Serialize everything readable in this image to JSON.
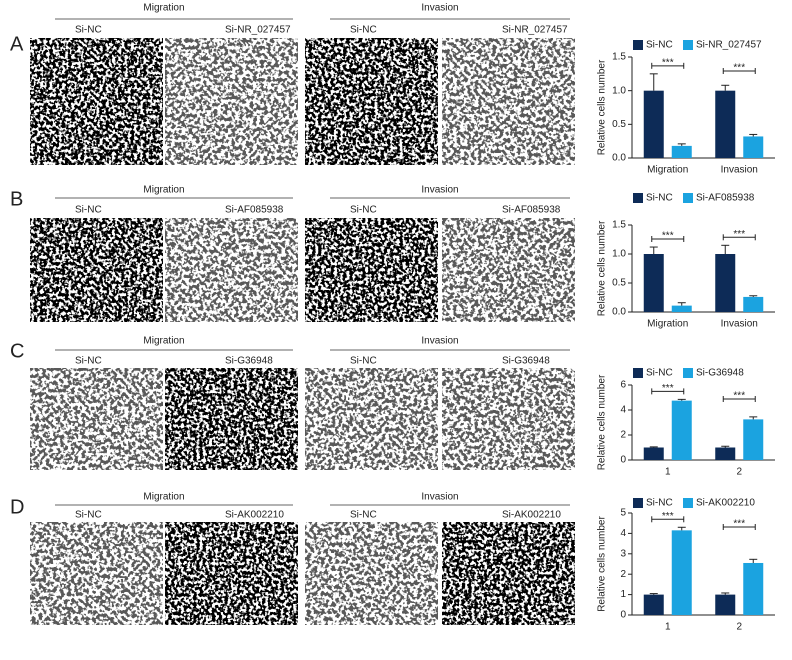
{
  "panels": [
    {
      "label": "A",
      "groups": [
        {
          "title": "Migration",
          "samples": [
            "Si-NC",
            "Si-NR_027457"
          ]
        },
        {
          "title": "Invasion",
          "samples": [
            "Si-NC",
            "Si-NR_027457"
          ]
        }
      ]
    },
    {
      "label": "B",
      "groups": [
        {
          "title": "Migration",
          "samples": [
            "Si-NC",
            "Si-AF085938"
          ]
        },
        {
          "title": "Invasion",
          "samples": [
            "Si-NC",
            "Si-AF085938"
          ]
        }
      ]
    },
    {
      "label": "C",
      "groups": [
        {
          "title": "Migration",
          "samples": [
            "Si-NC",
            "Si-G36948"
          ]
        },
        {
          "title": "Invasion",
          "samples": [
            "Si-NC",
            "Si-G36948"
          ]
        }
      ]
    },
    {
      "label": "D",
      "groups": [
        {
          "title": "Migration",
          "samples": [
            "Si-NC",
            "Si-AK002210"
          ]
        },
        {
          "title": "Invasion",
          "samples": [
            "Si-NC",
            "Si-AK002210"
          ]
        }
      ]
    }
  ],
  "chart_data": [
    {
      "type": "bar",
      "ylabel": "Relative cells number",
      "categories": [
        "Migration",
        "Invasion"
      ],
      "series": [
        {
          "name": "Si-NC",
          "color": "#0d2b57",
          "values": [
            1.0,
            1.0
          ],
          "errors": [
            0.25,
            0.08
          ]
        },
        {
          "name": "Si-NR_027457",
          "color": "#1ba3e0",
          "values": [
            0.18,
            0.32
          ],
          "errors": [
            0.03,
            0.03
          ]
        }
      ],
      "annotations": [
        "***",
        "***"
      ],
      "ylim": [
        0,
        1.5
      ],
      "yticks": [
        {
          "value": 0,
          "label": "0.0"
        },
        0.5,
        {
          "value": 1,
          "label": "1.0"
        },
        1.5
      ]
    },
    {
      "type": "bar",
      "ylabel": "Relative cells number",
      "categories": [
        "Migration",
        "Invasion"
      ],
      "series": [
        {
          "name": "Si-NC",
          "color": "#0d2b57",
          "values": [
            1.0,
            1.0
          ],
          "errors": [
            0.12,
            0.15
          ]
        },
        {
          "name": "Si-AF085938",
          "color": "#1ba3e0",
          "values": [
            0.11,
            0.26
          ],
          "errors": [
            0.05,
            0.02
          ]
        }
      ],
      "annotations": [
        "***",
        "***"
      ],
      "ylim": [
        0,
        1.5
      ],
      "yticks": [
        {
          "value": 0,
          "label": "0.0"
        },
        0.5,
        {
          "value": 1,
          "label": "1.0"
        },
        1.5
      ]
    },
    {
      "type": "bar",
      "ylabel": "Relative cells number",
      "categories": [
        "1",
        "2"
      ],
      "series": [
        {
          "name": "Si-NC",
          "color": "#0d2b57",
          "values": [
            1.0,
            1.0
          ],
          "errors": [
            0.05,
            0.1
          ]
        },
        {
          "name": "Si-G36948",
          "color": "#1ba3e0",
          "values": [
            4.75,
            3.25
          ],
          "errors": [
            0.1,
            0.2
          ]
        }
      ],
      "annotations": [
        "***",
        "***"
      ],
      "ylim": [
        0,
        6
      ],
      "yticks": [
        0,
        2,
        4,
        6
      ]
    },
    {
      "type": "bar",
      "ylabel": "Relative cells number",
      "categories": [
        "1",
        "2"
      ],
      "series": [
        {
          "name": "Si-NC",
          "color": "#0d2b57",
          "values": [
            1.0,
            1.0
          ],
          "errors": [
            0.05,
            0.08
          ]
        },
        {
          "name": "Si-AK002210",
          "color": "#1ba3e0",
          "values": [
            4.15,
            2.55
          ],
          "errors": [
            0.15,
            0.18
          ]
        }
      ],
      "annotations": [
        "***",
        "***"
      ],
      "ylim": [
        0,
        5
      ],
      "yticks": [
        0,
        1,
        2,
        3,
        4,
        5
      ]
    }
  ]
}
